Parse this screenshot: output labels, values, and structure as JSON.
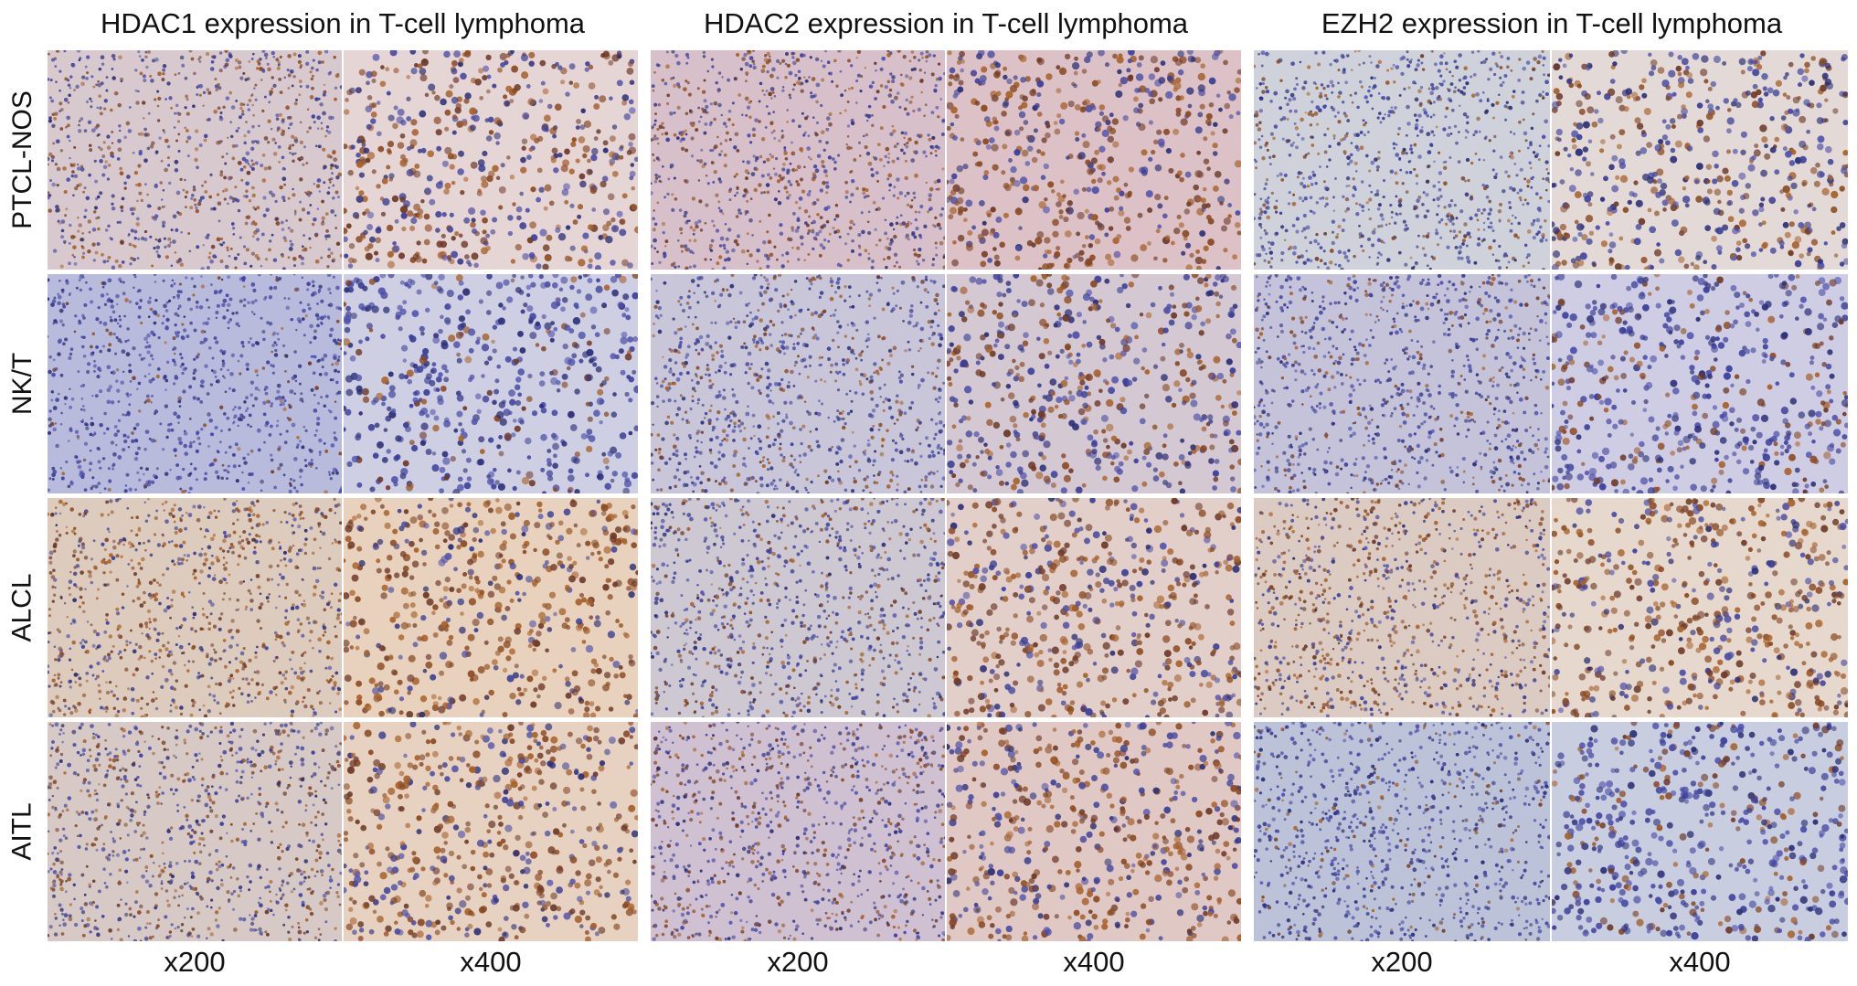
{
  "groups": [
    {
      "title": "HDAC1 expression in T-cell lymphoma",
      "magnifications": [
        "x200",
        "x400"
      ]
    },
    {
      "title": "HDAC2 expression in T-cell lymphoma",
      "magnifications": [
        "x200",
        "x400"
      ]
    },
    {
      "title": "EZH2 expression in T-cell lymphoma",
      "magnifications": [
        "x200",
        "x400"
      ]
    }
  ],
  "rows": [
    {
      "label": "PTCL-NOS"
    },
    {
      "label": "NK/T"
    },
    {
      "label": "ALCL"
    },
    {
      "label": "AITL"
    }
  ],
  "colors": {
    "stain_brown": "#9a5a2a",
    "hematoxylin_blue": "#3b3f9a",
    "background": "#ffffff"
  }
}
